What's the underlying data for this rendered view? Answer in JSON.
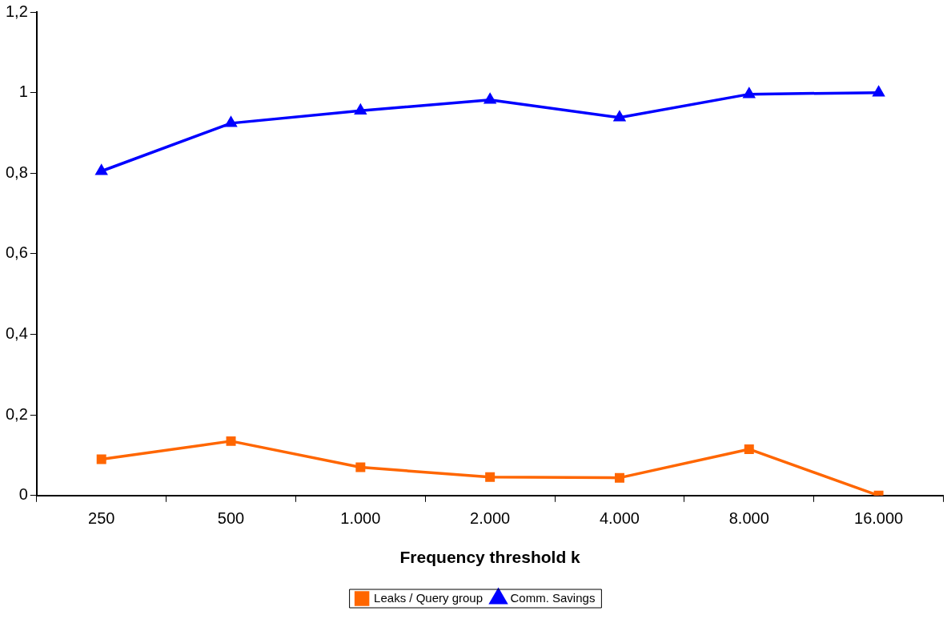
{
  "chart_data": {
    "type": "line",
    "xlabel": "Frequency threshold k",
    "categories": [
      "250",
      "500",
      "1.000",
      "2.000",
      "4.000",
      "8.000",
      "16.000"
    ],
    "series": [
      {
        "name": "Leaks / Query group",
        "color": "#ff6600",
        "values": [
          0.09,
          0.135,
          0.07,
          0.046,
          0.044,
          0.115,
          0
        ]
      },
      {
        "name": "Comm. Savings",
        "color": "#0000ff",
        "values": [
          0.805,
          0.924,
          0.955,
          0.982,
          0.938,
          0.996,
          1.0
        ],
        "marker": "triangle"
      }
    ],
    "ylim": [
      0,
      1.2
    ],
    "yticks": [
      {
        "value": 0,
        "label": "0"
      },
      {
        "value": 0.2,
        "label": "0,2"
      },
      {
        "value": 0.4,
        "label": "0,4"
      },
      {
        "value": 0.6,
        "label": "0,6"
      },
      {
        "value": 0.8,
        "label": "0,8"
      },
      {
        "value": 1,
        "label": "1"
      },
      {
        "value": 1.2,
        "label": "1,2"
      }
    ],
    "grid": false,
    "legend": "bottom",
    "marker": "square",
    "line_style": "solid"
  }
}
